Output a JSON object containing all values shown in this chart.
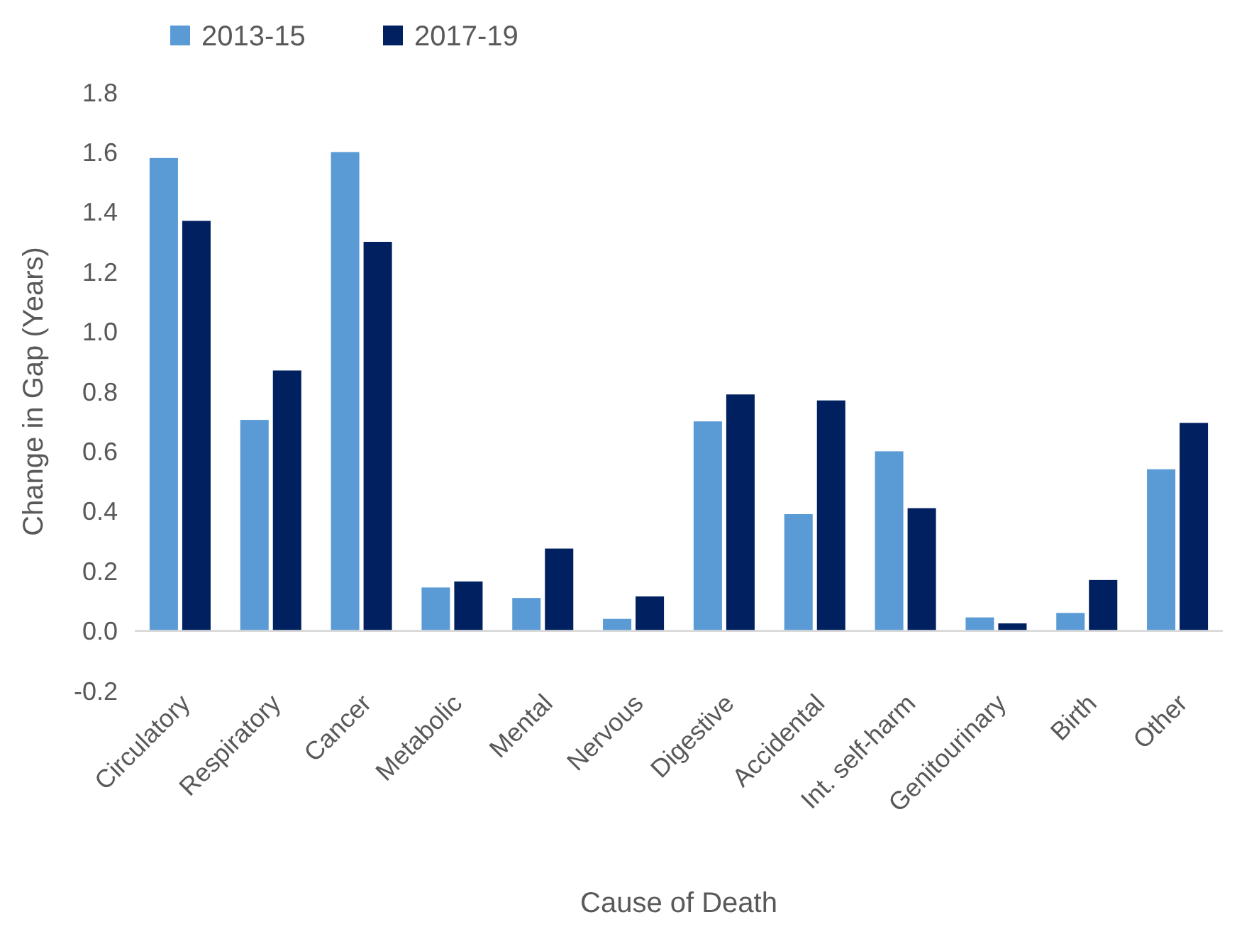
{
  "chart_data": {
    "type": "bar",
    "xlabel": "Cause of Death",
    "ylabel": "Change in Gap (Years)",
    "categories": [
      "Circulatory",
      "Respiratory",
      "Cancer",
      "Metabolic",
      "Mental",
      "Nervous",
      "Digestive",
      "Accidental",
      "Int. self-harm",
      "Genitourinary",
      "Birth",
      "Other"
    ],
    "series": [
      {
        "name": "2013-15",
        "color": "#5b9bd5",
        "values": [
          1.58,
          0.705,
          1.6,
          0.145,
          0.11,
          0.04,
          0.7,
          0.39,
          0.6,
          0.045,
          0.06,
          0.54
        ]
      },
      {
        "name": "2017-19",
        "color": "#002060",
        "values": [
          1.37,
          0.87,
          1.3,
          0.165,
          0.275,
          0.115,
          0.79,
          0.77,
          0.41,
          0.025,
          0.17,
          0.695
        ]
      }
    ],
    "ylim": [
      -0.2,
      1.8
    ],
    "yticks": [
      {
        "value": -0.2,
        "label": "-0.2"
      },
      {
        "value": 0,
        "label": "0.0"
      },
      {
        "value": 0.2,
        "label": "0.2"
      },
      {
        "value": 0.4,
        "label": "0.4"
      },
      {
        "value": 0.6,
        "label": "0.6"
      },
      {
        "value": 0.8,
        "label": "0.8"
      },
      {
        "value": 1,
        "label": "1.0"
      },
      {
        "value": 1.2,
        "label": "1.2"
      },
      {
        "value": 1.4,
        "label": "1.4"
      },
      {
        "value": 1.6,
        "label": "1.6"
      },
      {
        "value": 1.8,
        "label": "1.8"
      }
    ],
    "grid": false,
    "legend": "top left"
  }
}
